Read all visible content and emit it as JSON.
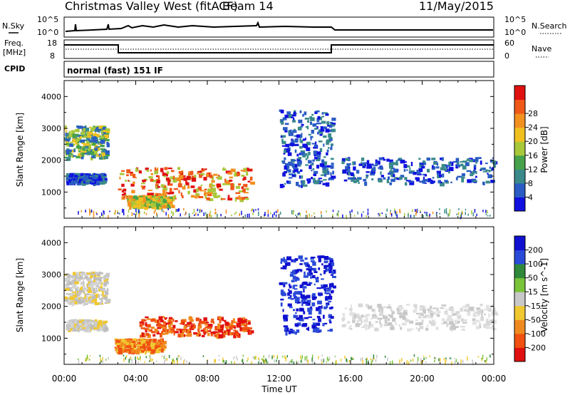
{
  "header": {
    "site": "Christmas Valley West (fitACF)",
    "beam": "Beam 14",
    "date": "11/May/2015"
  },
  "top_panels": {
    "nsky_label": "N.Sky",
    "nsky_top": "10^5",
    "nsky_bottom": "10^0",
    "nsearch_label": "N.Search",
    "nsearch_top": "10^5",
    "nsearch_bottom": "10^0",
    "freq_label_1": "Freq.",
    "freq_label_2": "[MHz]",
    "freq_top": "18",
    "freq_bottom": "8",
    "nave_label": "Nave",
    "nave_top": "60",
    "nave_bottom": "0",
    "cpid_label": "CPID",
    "cpid_value": "normal (fast) 151 IF"
  },
  "chart_data": [
    {
      "type": "heatmap",
      "title": "",
      "ylabel": "Slant Range [km]",
      "xlabel": "",
      "yticks": [
        "1000",
        "2000",
        "3000",
        "4000"
      ],
      "ylim": [
        180,
        4500
      ],
      "colorbar_label": "Power [dB]",
      "colorbar_ticks": [
        "4",
        "8",
        "12",
        "16",
        "20",
        "24",
        "28"
      ],
      "colorbar_colors": [
        "#1010e0",
        "#2a5cc4",
        "#3a8a8a",
        "#46a24a",
        "#a8c83a",
        "#f0c020",
        "#f29020",
        "#f05818",
        "#e01010"
      ],
      "clim": [
        0,
        30
      ],
      "regions": [
        {
          "x0": 0.0,
          "x1": 2.4,
          "y0": 2100,
          "y1": 3100,
          "level": "mixed-mid"
        },
        {
          "x0": 0.1,
          "x1": 2.2,
          "y0": 1300,
          "y1": 1600,
          "level": "low"
        },
        {
          "x0": 3.0,
          "x1": 10.4,
          "y0": 800,
          "y1": 1800,
          "level": "high"
        },
        {
          "x0": 3.5,
          "x1": 6.0,
          "y0": 550,
          "y1": 900,
          "level": "mid"
        },
        {
          "x0": 12.0,
          "x1": 15.0,
          "y0": 1200,
          "y1": 3600,
          "level": "low"
        },
        {
          "x0": 15.5,
          "x1": 24.0,
          "y0": 1300,
          "y1": 2100,
          "level": "low"
        }
      ]
    },
    {
      "type": "heatmap",
      "title": "",
      "ylabel": "Slant Range [km]",
      "xlabel": "Time UT",
      "xticks": [
        "00:00",
        "04:00",
        "08:00",
        "12:00",
        "16:00",
        "20:00",
        "00:00"
      ],
      "yticks": [
        "1000",
        "2000",
        "3000",
        "4000"
      ],
      "ylim": [
        180,
        4500
      ],
      "colorbar_label": "Velocity [m s^-1]",
      "colorbar_ticks": [
        "200",
        "100",
        "50",
        "15",
        "-15",
        "-50",
        "-100",
        "-200"
      ],
      "colorbar_colors": [
        "#1010d0",
        "#2a4ad8",
        "#2e8a3a",
        "#7ac43a",
        "#c8c8c8",
        "#f0c830",
        "#f08a20",
        "#f05010",
        "#e01010"
      ],
      "clim": [
        -250,
        250
      ],
      "regions": [
        {
          "x0": 0.0,
          "x1": 2.4,
          "y0": 2100,
          "y1": 3100,
          "level": "gray"
        },
        {
          "x0": 0.1,
          "x1": 2.2,
          "y0": 1300,
          "y1": 1600,
          "level": "gray"
        },
        {
          "x0": 4.2,
          "x1": 10.4,
          "y0": 1100,
          "y1": 1700,
          "level": "red"
        },
        {
          "x0": 2.8,
          "x1": 5.5,
          "y0": 600,
          "y1": 1000,
          "level": "orange"
        },
        {
          "x0": 12.0,
          "x1": 15.0,
          "y0": 1200,
          "y1": 3600,
          "level": "blue"
        },
        {
          "x0": 15.5,
          "x1": 24.0,
          "y0": 1300,
          "y1": 2100,
          "level": "gray-light"
        }
      ]
    }
  ],
  "colors": {
    "frame": "#000000",
    "background": "#ffffff"
  }
}
